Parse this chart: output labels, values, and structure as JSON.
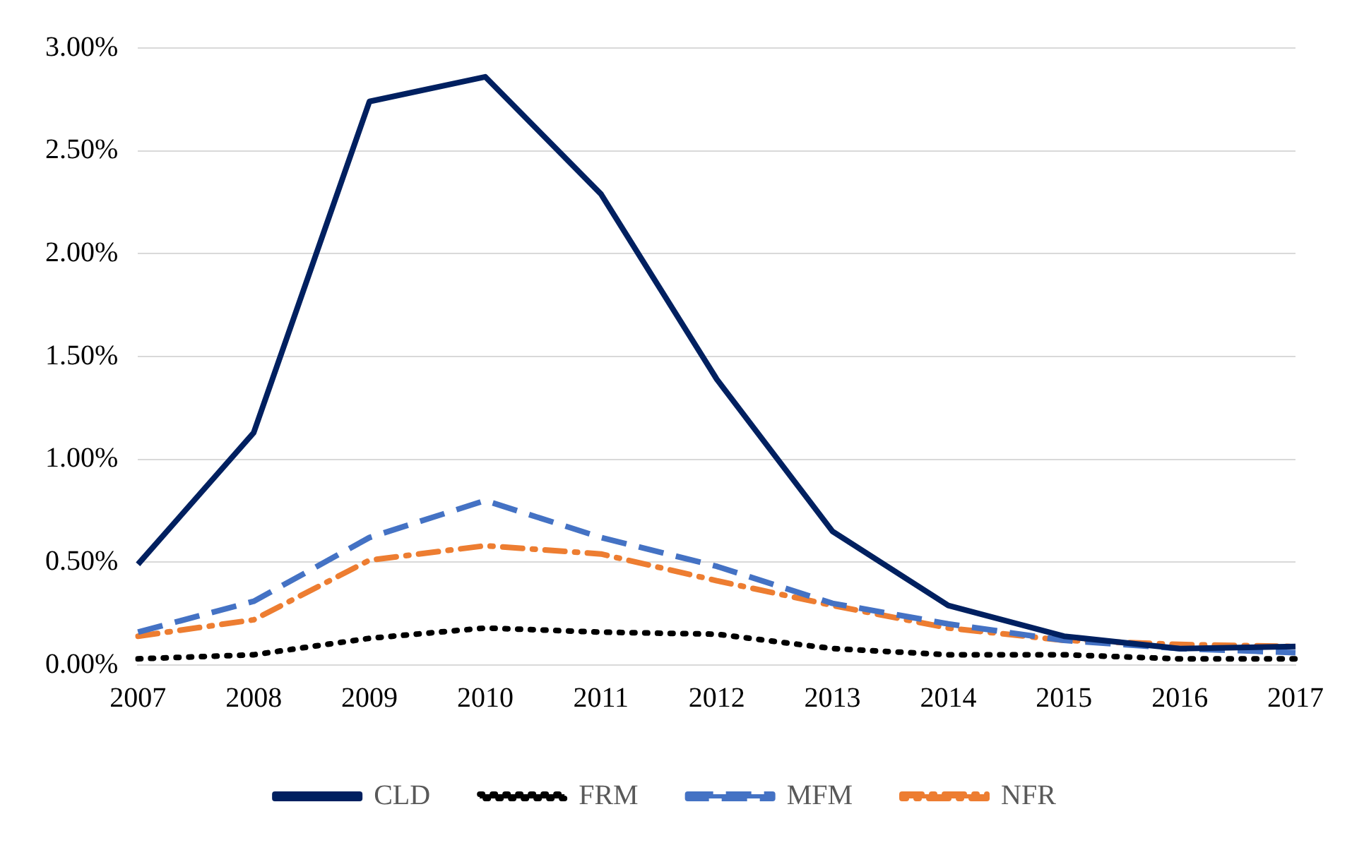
{
  "chart_data": {
    "type": "line",
    "categories": [
      "2007",
      "2008",
      "2009",
      "2010",
      "2011",
      "2012",
      "2013",
      "2014",
      "2015",
      "2016",
      "2017"
    ],
    "series": [
      {
        "name": "CLD",
        "color": "#002060",
        "line_style": "solid",
        "values": [
          0.49,
          1.13,
          2.74,
          2.86,
          2.29,
          1.39,
          0.65,
          0.29,
          0.14,
          0.08,
          0.09
        ]
      },
      {
        "name": "FRM",
        "color": "#000000",
        "line_style": "dotted",
        "values": [
          0.03,
          0.05,
          0.13,
          0.18,
          0.16,
          0.15,
          0.08,
          0.05,
          0.05,
          0.03,
          0.03
        ]
      },
      {
        "name": "MFM",
        "color": "#4472c4",
        "line_style": "dashed",
        "values": [
          0.16,
          0.31,
          0.62,
          0.8,
          0.62,
          0.48,
          0.3,
          0.2,
          0.12,
          0.08,
          0.06
        ]
      },
      {
        "name": "NFR",
        "color": "#ed7d31",
        "line_style": "dashdot",
        "values": [
          0.14,
          0.22,
          0.51,
          0.58,
          0.54,
          0.41,
          0.29,
          0.18,
          0.12,
          0.1,
          0.09
        ]
      }
    ],
    "ylim": [
      0,
      3
    ],
    "yticks": [
      {
        "value": 0,
        "label": "0.00%"
      },
      {
        "value": 0.5,
        "label": "0.50%"
      },
      {
        "value": 1,
        "label": "1.00%"
      },
      {
        "value": 1.5,
        "label": "1.50%"
      },
      {
        "value": 2,
        "label": "2.00%"
      },
      {
        "value": 2.5,
        "label": "2.50%"
      },
      {
        "value": 3,
        "label": "3.00%"
      }
    ],
    "grid": "y",
    "legend": "bottom",
    "marker": "none"
  }
}
